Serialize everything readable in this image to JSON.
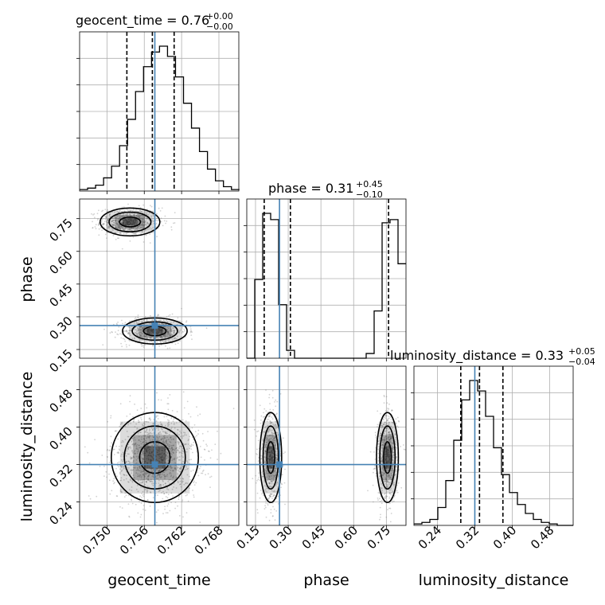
{
  "chart_data": {
    "type": "corner",
    "parameters": [
      "geocent_time",
      "phase",
      "luminosity_distance"
    ],
    "injection": {
      "geocent_time": 0.7577,
      "phase": 0.26,
      "luminosity_distance": 0.32
    },
    "ranges": {
      "geocent_time": [
        0.7456,
        0.7712
      ],
      "phase": [
        0.11,
        0.84
      ],
      "luminosity_distance": [
        0.19,
        0.53
      ]
    },
    "diagonals": [
      {
        "parameter": "geocent_time",
        "title_main": "geocent_time = 0.76",
        "title_plus": "+0.00",
        "title_minus": "−0.00",
        "quantiles": [
          0.7532,
          0.7573,
          0.7608
        ],
        "xticks": [
          0.75,
          0.756,
          0.762,
          0.768
        ],
        "xtick_labels": [
          "0.750",
          "0.756",
          "0.762",
          "0.768"
        ],
        "bins": [
          0.7456,
          0.7713
        ],
        "counts": [
          1,
          2,
          4,
          9,
          17,
          31,
          49,
          68,
          85,
          95,
          99,
          92,
          78,
          60,
          43,
          27,
          15,
          7,
          3,
          1
        ]
      },
      {
        "parameter": "phase",
        "title_main": "phase = 0.31",
        "title_plus": "+0.45",
        "title_minus": "−0.10",
        "quantiles": [
          0.19,
          0.31,
          0.76
        ],
        "xticks": [
          0.15,
          0.3,
          0.45,
          0.6,
          0.75
        ],
        "xtick_labels": [
          "0.15",
          "0.30",
          "0.45",
          "0.60",
          "0.75"
        ],
        "bins": [
          0.11,
          0.84
        ],
        "counts": [
          0,
          50,
          92,
          88,
          34,
          5,
          0,
          0,
          0,
          0,
          0,
          0,
          0,
          0,
          0,
          3,
          30,
          86,
          88,
          60
        ]
      },
      {
        "parameter": "luminosity_distance",
        "title_main": "luminosity_distance = 0.33",
        "title_plus": "+0.05",
        "title_minus": "−0.04",
        "quantiles": [
          0.29,
          0.33,
          0.38
        ],
        "xticks": [
          0.24,
          0.32,
          0.4,
          0.48
        ],
        "xtick_labels": [
          "0.24",
          "0.32",
          "0.40",
          "0.48"
        ],
        "bins": [
          0.19,
          0.53
        ],
        "counts": [
          1,
          2,
          4,
          12,
          30,
          57,
          84,
          97,
          90,
          73,
          52,
          34,
          22,
          14,
          8,
          4,
          2,
          1,
          0,
          0
        ]
      }
    ],
    "y_axis_ticks": {
      "phase": {
        "ticks": [
          0.15,
          0.3,
          0.45,
          0.6,
          0.75
        ],
        "labels": [
          "0.15",
          "0.30",
          "0.45",
          "0.60",
          "0.75"
        ]
      },
      "luminosity_distance": {
        "ticks": [
          0.24,
          0.32,
          0.4,
          0.48
        ],
        "labels": [
          "0.24",
          "0.32",
          "0.40",
          "0.48"
        ]
      }
    },
    "x_axis_labels": [
      "geocent_time",
      "phase",
      "luminosity_distance"
    ],
    "y_axis_labels": [
      "phase",
      "luminosity_distance"
    ],
    "scatter_panels": [
      {
        "x": "geocent_time",
        "y": "phase",
        "modes": [
          {
            "cx": 0.7537,
            "cy": 0.735,
            "sx": 0.0024,
            "sy": 0.032,
            "weight": 0.5
          },
          {
            "cx": 0.7577,
            "cy": 0.235,
            "sx": 0.0026,
            "sy": 0.03,
            "weight": 0.5
          }
        ]
      },
      {
        "x": "geocent_time",
        "y": "luminosity_distance",
        "modes": [
          {
            "cx": 0.7577,
            "cy": 0.335,
            "sx": 0.0035,
            "sy": 0.048,
            "weight": 1.0
          }
        ]
      },
      {
        "x": "phase",
        "y": "luminosity_distance",
        "modes": [
          {
            "cx": 0.22,
            "cy": 0.335,
            "sx": 0.025,
            "sy": 0.048,
            "weight": 0.5
          },
          {
            "cx": 0.755,
            "cy": 0.335,
            "sx": 0.025,
            "sy": 0.048,
            "weight": 0.5
          }
        ]
      }
    ],
    "colors": {
      "truth": "#4682b4",
      "hist": "#000000",
      "scatter": "#7f7f7f",
      "grid": "#b0b0b0"
    },
    "grid": true
  }
}
